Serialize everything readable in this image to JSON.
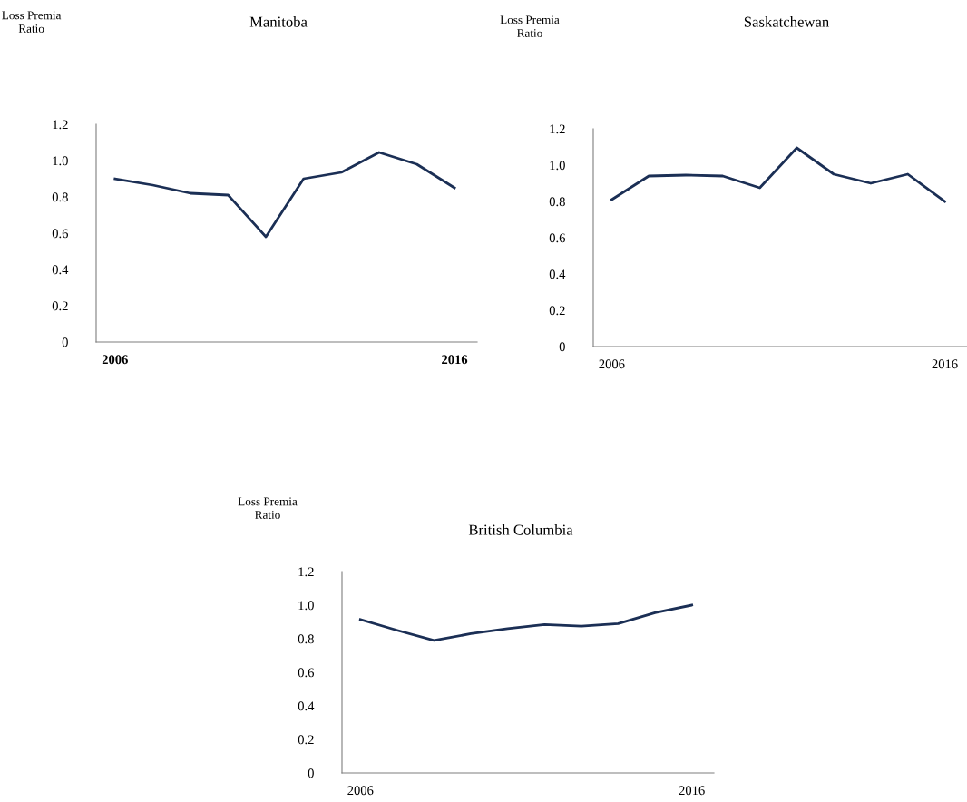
{
  "chart_data": [
    {
      "type": "line",
      "title": "Manitoba",
      "ylabel": "Loss Premia\nRatio",
      "categories": [
        "2006",
        null,
        null,
        null,
        null,
        null,
        null,
        null,
        null,
        "2016"
      ],
      "series": [
        {
          "color": "#1b2f55",
          "values": [
            0.9,
            0.865,
            0.82,
            0.81,
            0.58,
            0.9,
            0.935,
            1.045,
            0.98,
            0.85
          ]
        }
      ],
      "ylim": [
        0,
        1.2
      ],
      "yticks": [
        0,
        {
          "value": 0.2,
          "label": "0.2"
        },
        {
          "value": 0.4,
          "label": "0.4"
        },
        {
          "value": 0.6,
          "label": "0.6"
        },
        {
          "value": 0.8,
          "label": "0.8"
        },
        {
          "value": 1.0,
          "label": "1.0"
        },
        {
          "value": 1.2,
          "label": "1.2"
        }
      ],
      "grid": false,
      "legend": false
    },
    {
      "type": "line",
      "title": "Saskatchewan",
      "ylabel": "Loss Premia\nRatio",
      "categories": [
        "2006",
        null,
        null,
        null,
        null,
        null,
        null,
        null,
        null,
        "2016"
      ],
      "series": [
        {
          "color": "#1b2f55",
          "values": [
            0.81,
            0.94,
            0.945,
            0.94,
            0.875,
            1.095,
            0.95,
            0.9,
            0.95,
            0.8
          ]
        }
      ],
      "ylim": [
        0,
        1.2
      ],
      "yticks": [
        0,
        {
          "value": 0.2,
          "label": "0.2"
        },
        {
          "value": 0.4,
          "label": "0.4"
        },
        {
          "value": 0.6,
          "label": "0.6"
        },
        {
          "value": 0.8,
          "label": "0.8"
        },
        {
          "value": 1.0,
          "label": "1.0"
        },
        {
          "value": 1.2,
          "label": "1.2"
        }
      ],
      "grid": false,
      "legend": false
    },
    {
      "type": "line",
      "title": "British Columbia",
      "ylabel": "Loss Premia\nRatio",
      "categories": [
        "2006",
        null,
        null,
        null,
        null,
        null,
        null,
        null,
        null,
        "2016"
      ],
      "series": [
        {
          "color": "#1b2f55",
          "values": [
            0.915,
            0.85,
            0.79,
            0.83,
            0.86,
            0.885,
            0.875,
            0.89,
            0.955,
            1.0
          ]
        }
      ],
      "ylim": [
        0,
        1.2
      ],
      "yticks": [
        0,
        {
          "value": 0.2,
          "label": "0.2"
        },
        {
          "value": 0.4,
          "label": "0.4"
        },
        {
          "value": 0.6,
          "label": "0.6"
        },
        {
          "value": 0.8,
          "label": "0.8"
        },
        {
          "value": 1.0,
          "label": "1.0"
        },
        {
          "value": 1.2,
          "label": "1.2"
        }
      ],
      "grid": false,
      "legend": false
    }
  ]
}
